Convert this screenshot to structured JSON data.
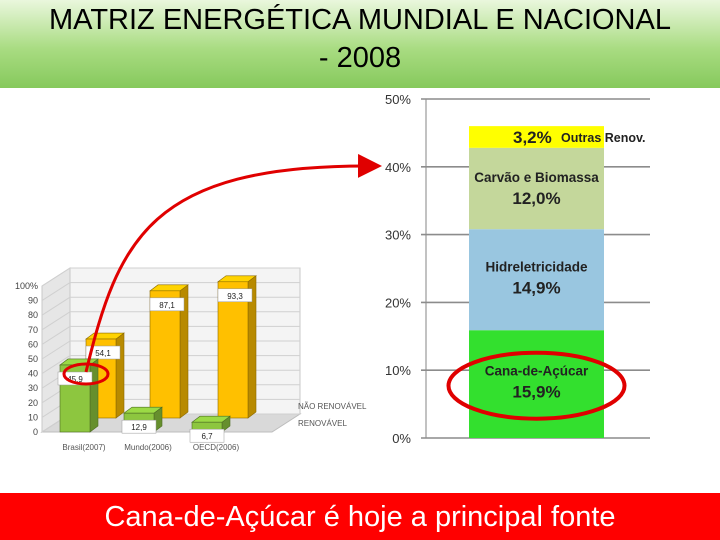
{
  "slide": {
    "title_line1": "MATRIZ ENERGÉTICA MUNDIAL E NACIONAL",
    "title_line2": "- 2008",
    "footer": "Cana-de-Açúcar é hoje a principal fonte"
  },
  "colors": {
    "title_gradient_top": "#eaf7dd",
    "title_gradient_bottom": "#86c95c",
    "footer_bg": "#ff0000",
    "renovavel": "#8dc63f",
    "nao_renovavel": "#ffc000",
    "cana": "#33e02e",
    "hidro": "#99c6e0",
    "carvao": "#c4d79b",
    "outras": "#ffff00",
    "highlight": "#e00000"
  },
  "chart_data": [
    {
      "type": "bar",
      "style": "3d-clustered",
      "categories": [
        "Brasil(2007)",
        "Mundo(2006)",
        "OECD(2006)"
      ],
      "series": [
        {
          "name": "RENOVÁVEL",
          "values": [
            45.9,
            12.9,
            6.7
          ],
          "labels": [
            "45,9",
            "12,9",
            "6,7"
          ]
        },
        {
          "name": "NÃO RENOVÁVEL",
          "values": [
            54.1,
            87.1,
            93.3
          ],
          "labels": [
            "54,1",
            "87,1",
            "93,3"
          ]
        }
      ],
      "y_ticks": [
        "0",
        "10",
        "20",
        "30",
        "40",
        "50",
        "60",
        "70",
        "80",
        "90",
        "100%"
      ],
      "ylim": [
        0,
        100
      ],
      "legend": "right"
    },
    {
      "type": "bar",
      "style": "stacked-single",
      "y_ticks": [
        "0%",
        "10%",
        "20%",
        "30%",
        "40%",
        "50%"
      ],
      "ylim": [
        0,
        50
      ],
      "grid": true,
      "segments": [
        {
          "name": "Cana-de-Açúcar",
          "value": 15.9,
          "label": "15,9%"
        },
        {
          "name": "Hidreletricidade",
          "value": 14.9,
          "label": "14,9%"
        },
        {
          "name": "Carvão e Biomassa",
          "value": 12.0,
          "label": "12,0%"
        },
        {
          "name": "Outras Renov.",
          "value": 3.2,
          "label": "3,2%"
        }
      ],
      "highlighted": "Cana-de-Açúcar"
    }
  ]
}
